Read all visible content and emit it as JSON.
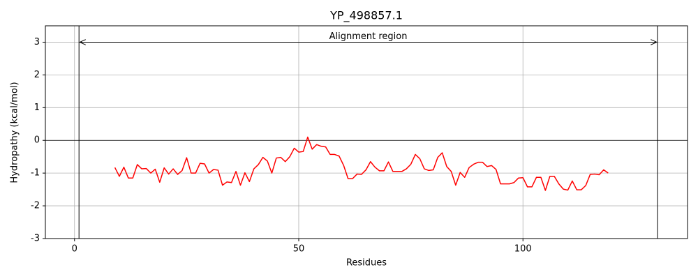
{
  "chart_data": {
    "type": "line",
    "title": "YP_498857.1",
    "x_label": "Residues",
    "y_label": "Hydropathy (kcal/mol)",
    "x": [
      9,
      10,
      11,
      12,
      13,
      14,
      15,
      16,
      17,
      18,
      19,
      20,
      21,
      22,
      23,
      24,
      25,
      26,
      27,
      28,
      29,
      30,
      31,
      32,
      33,
      34,
      35,
      36,
      37,
      38,
      39,
      40,
      41,
      42,
      43,
      44,
      45,
      46,
      47,
      48,
      49,
      50,
      51,
      52,
      53,
      54,
      55,
      56,
      57,
      58,
      59,
      60,
      61,
      62,
      63,
      64,
      65,
      66,
      67,
      68,
      69,
      70,
      71,
      72,
      73,
      74,
      75,
      76,
      77,
      78,
      79,
      80,
      81,
      82,
      83,
      84,
      85,
      86,
      87,
      88,
      89,
      90,
      91,
      92,
      93,
      94,
      95,
      96,
      97,
      98,
      99,
      100,
      101,
      102,
      103,
      104,
      105,
      106,
      107,
      108,
      109,
      110,
      111,
      112,
      113,
      114,
      115,
      116,
      117,
      118,
      119
    ],
    "series": [
      {
        "color": "#ff0000",
        "values": [
          -0.83,
          -1.1,
          -0.82,
          -1.15,
          -1.15,
          -0.74,
          -0.87,
          -0.86,
          -1.0,
          -0.88,
          -1.28,
          -0.84,
          -1.03,
          -0.87,
          -1.04,
          -0.92,
          -0.53,
          -1.0,
          -1.0,
          -0.7,
          -0.72,
          -1.0,
          -0.89,
          -0.91,
          -1.37,
          -1.27,
          -1.29,
          -0.95,
          -1.37,
          -0.99,
          -1.26,
          -0.87,
          -0.74,
          -0.52,
          -0.63,
          -1.0,
          -0.54,
          -0.52,
          -0.65,
          -0.5,
          -0.24,
          -0.36,
          -0.34,
          0.1,
          -0.27,
          -0.13,
          -0.18,
          -0.2,
          -0.43,
          -0.43,
          -0.48,
          -0.76,
          -1.17,
          -1.17,
          -1.03,
          -1.04,
          -0.9,
          -0.65,
          -0.82,
          -0.93,
          -0.93,
          -0.66,
          -0.95,
          -0.95,
          -0.95,
          -0.87,
          -0.73,
          -0.43,
          -0.56,
          -0.87,
          -0.92,
          -0.9,
          -0.52,
          -0.38,
          -0.8,
          -0.95,
          -1.37,
          -0.98,
          -1.13,
          -0.83,
          -0.73,
          -0.67,
          -0.67,
          -0.8,
          -0.77,
          -0.89,
          -1.33,
          -1.33,
          -1.33,
          -1.29,
          -1.15,
          -1.14,
          -1.42,
          -1.42,
          -1.13,
          -1.13,
          -1.53,
          -1.1,
          -1.1,
          -1.33,
          -1.49,
          -1.52,
          -1.24,
          -1.51,
          -1.51,
          -1.38,
          -1.04,
          -1.03,
          -1.05,
          -0.9,
          -1.0
        ]
      }
    ],
    "xlim": [
      -6.5,
      136.7
    ],
    "ylim": [
      -3,
      3.5
    ],
    "xticks": [
      0,
      50,
      100
    ],
    "yticks": [
      -3,
      -2,
      -1,
      0,
      1,
      2,
      3
    ],
    "grid": true,
    "hline": 0,
    "region": [
      1,
      130
    ],
    "region_y": 3,
    "region_label": "Alignment region"
  }
}
